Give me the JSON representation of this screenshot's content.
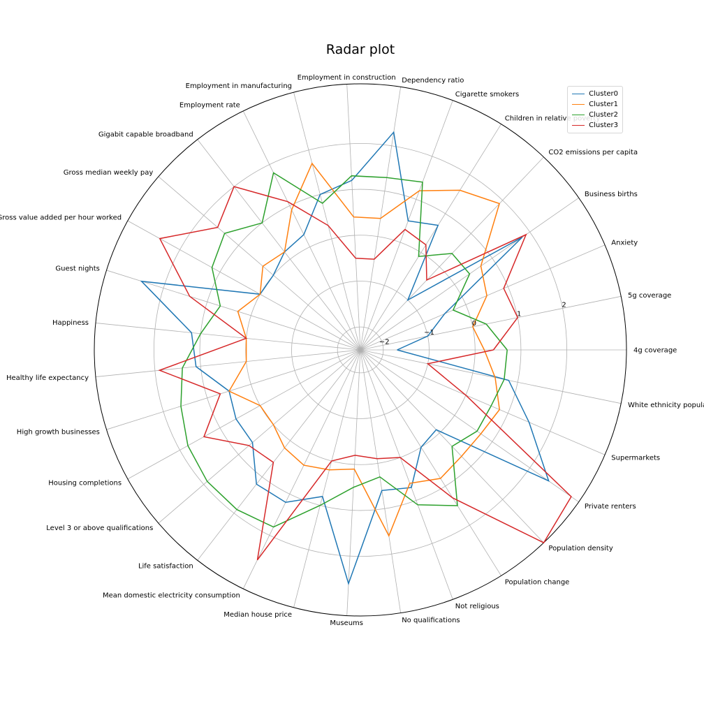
{
  "chart_data": {
    "type": "radar",
    "title": "Radar plot",
    "categories": [
      "4g coverage",
      "5g coverage",
      "Anxiety",
      "Business births",
      "CO2 emissions per capita",
      "Children in relative poverty",
      "Cigarette smokers",
      "Dependency ratio",
      "Employment in construction",
      "Employment in manufacturing",
      "Employment rate",
      "Gigabit capable broadband",
      "Gross median weekly pay",
      "Gross value added per hour worked",
      "Guest nights",
      "Happiness",
      "Healthy life expectancy",
      "High growth businesses",
      "Housing completions",
      "Level 3 or above qualifications",
      "Life satisfaction",
      "Mean domestic electricity consumption",
      "Median house price",
      "Museums",
      "No qualifications",
      "Not religious",
      "Population change",
      "Population density",
      "Private renters",
      "Supermarkets",
      "White ethnicity population"
    ],
    "radial_range": [
      -2.5,
      3.3
    ],
    "radial_ticks": [
      -2,
      -1,
      0,
      1,
      2
    ],
    "radial_tick_labels": [
      "−2",
      "−1",
      "0",
      "1",
      "2"
    ],
    "grid": true,
    "legend_position": "top-right",
    "series": [
      {
        "name": "Cluster0",
        "color": "#1f77b4",
        "values": [
          -1.7,
          -1.0,
          -0.5,
          1.8,
          -1.0,
          0.7,
          0.5,
          2.3,
          1.2,
          1.0,
          0.3,
          0.2,
          0.0,
          0.0,
          2.5,
          1.2,
          1.1,
          0.5,
          0.6,
          0.6,
          1.2,
          1.2,
          0.8,
          2.6,
          0.6,
          0.7,
          0.0,
          -0.1,
          2.5,
          1.5,
          0.8
        ]
      },
      {
        "name": "Cluster1",
        "color": "#ff7f0e",
        "values": [
          0.2,
          0.0,
          0.5,
          0.7,
          1.9,
          1.6,
          1.2,
          0.4,
          0.4,
          1.7,
          0.9,
          0.2,
          0.3,
          0.0,
          0.3,
          0.0,
          0.0,
          0.5,
          0.0,
          0.0,
          0.2,
          0.3,
          0.2,
          0.1,
          1.6,
          0.6,
          0.8,
          0.7,
          0.7,
          0.8,
          0.5
        ]
      },
      {
        "name": "Cluster2",
        "color": "#2ca02c",
        "values": [
          0.7,
          0.3,
          -0.3,
          0.4,
          0.4,
          -0.1,
          1.4,
          1.3,
          1.3,
          0.8,
          1.8,
          1.0,
          1.4,
          1.2,
          0.7,
          1.0,
          1.4,
          1.6,
          1.8,
          1.9,
          1.9,
          1.8,
          1.0,
          0.5,
          0.3,
          1.1,
          1.5,
          0.4,
          0.6,
          0.6,
          0.7
        ]
      },
      {
        "name": "Cluster3",
        "color": "#d62728",
        "values": [
          0.4,
          1.0,
          0.9,
          1.9,
          -0.4,
          0.2,
          0.3,
          -0.5,
          -0.5,
          0.3,
          1.1,
          2.0,
          1.6,
          2.5,
          1.4,
          0.0,
          1.9,
          0.7,
          1.4,
          0.7,
          0.6,
          2.6,
          0.0,
          -0.2,
          -0.1,
          0.0,
          1.3,
          3.3,
          3.1,
          0.0,
          -1.0
        ]
      }
    ]
  }
}
